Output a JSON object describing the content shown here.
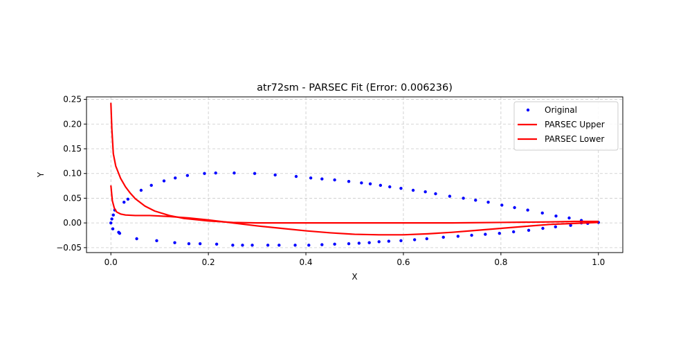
{
  "chart_data": {
    "type": "scatter",
    "title": "atr72sm - PARSEC Fit (Error: 0.006236)",
    "xlabel": "X",
    "ylabel": "Y",
    "xlim": [
      -0.05,
      1.05
    ],
    "ylim": [
      -0.06,
      0.255
    ],
    "xticks": [
      0.0,
      0.2,
      0.4,
      0.6,
      0.8,
      1.0
    ],
    "xtick_labels": [
      "0.0",
      "0.2",
      "0.4",
      "0.6",
      "0.8",
      "1.0"
    ],
    "yticks": [
      -0.05,
      0.0,
      0.05,
      0.1,
      0.15,
      0.2,
      0.25
    ],
    "ytick_labels": [
      "−0.05",
      "0.00",
      "0.05",
      "0.10",
      "0.15",
      "0.20",
      "0.25"
    ],
    "grid": true,
    "legend_position": "top-right",
    "series": [
      {
        "name": "Original",
        "kind": "scatter",
        "color": "#0000ff",
        "points": [
          [
            1.0,
            0.001
          ],
          [
            0.979,
            0.001
          ],
          [
            0.965,
            0.005
          ],
          [
            0.94,
            0.01
          ],
          [
            0.913,
            0.014
          ],
          [
            0.885,
            0.02
          ],
          [
            0.855,
            0.026
          ],
          [
            0.828,
            0.031
          ],
          [
            0.802,
            0.036
          ],
          [
            0.774,
            0.042
          ],
          [
            0.748,
            0.046
          ],
          [
            0.723,
            0.05
          ],
          [
            0.695,
            0.054
          ],
          [
            0.666,
            0.059
          ],
          [
            0.645,
            0.063
          ],
          [
            0.62,
            0.066
          ],
          [
            0.595,
            0.07
          ],
          [
            0.572,
            0.073
          ],
          [
            0.553,
            0.076
          ],
          [
            0.532,
            0.079
          ],
          [
            0.514,
            0.081
          ],
          [
            0.488,
            0.084
          ],
          [
            0.459,
            0.087
          ],
          [
            0.433,
            0.089
          ],
          [
            0.41,
            0.091
          ],
          [
            0.38,
            0.094
          ],
          [
            0.337,
            0.097
          ],
          [
            0.295,
            0.1
          ],
          [
            0.253,
            0.101
          ],
          [
            0.215,
            0.101
          ],
          [
            0.192,
            0.1
          ],
          [
            0.157,
            0.096
          ],
          [
            0.132,
            0.091
          ],
          [
            0.109,
            0.085
          ],
          [
            0.083,
            0.076
          ],
          [
            0.062,
            0.066
          ],
          [
            0.035,
            0.048
          ],
          [
            0.027,
            0.042
          ],
          [
            0.008,
            0.026
          ],
          [
            0.005,
            0.016
          ],
          [
            0.002,
            0.008
          ],
          [
            0.0,
            0.0
          ],
          [
            0.004,
            -0.012
          ],
          [
            0.016,
            -0.019
          ],
          [
            0.018,
            -0.021
          ],
          [
            0.053,
            -0.032
          ],
          [
            0.094,
            -0.036
          ],
          [
            0.131,
            -0.04
          ],
          [
            0.16,
            -0.042
          ],
          [
            0.183,
            -0.042
          ],
          [
            0.217,
            -0.043
          ],
          [
            0.25,
            -0.045
          ],
          [
            0.27,
            -0.045
          ],
          [
            0.29,
            -0.045
          ],
          [
            0.322,
            -0.045
          ],
          [
            0.345,
            -0.045
          ],
          [
            0.378,
            -0.045
          ],
          [
            0.406,
            -0.045
          ],
          [
            0.433,
            -0.044
          ],
          [
            0.459,
            -0.043
          ],
          [
            0.488,
            -0.042
          ],
          [
            0.509,
            -0.041
          ],
          [
            0.53,
            -0.04
          ],
          [
            0.55,
            -0.038
          ],
          [
            0.57,
            -0.037
          ],
          [
            0.595,
            -0.036
          ],
          [
            0.623,
            -0.034
          ],
          [
            0.648,
            -0.032
          ],
          [
            0.682,
            -0.029
          ],
          [
            0.712,
            -0.027
          ],
          [
            0.74,
            -0.025
          ],
          [
            0.768,
            -0.023
          ],
          [
            0.797,
            -0.021
          ],
          [
            0.826,
            -0.018
          ],
          [
            0.857,
            -0.015
          ],
          [
            0.886,
            -0.011
          ],
          [
            0.912,
            -0.008
          ],
          [
            0.943,
            -0.005
          ],
          [
            0.965,
            0.0
          ],
          [
            0.978,
            -0.001
          ]
        ]
      },
      {
        "name": "PARSEC Upper",
        "kind": "line",
        "color": "#ff0000",
        "points": [
          [
            0.0,
            0.243
          ],
          [
            0.002,
            0.19
          ],
          [
            0.005,
            0.14
          ],
          [
            0.01,
            0.115
          ],
          [
            0.02,
            0.09
          ],
          [
            0.03,
            0.073
          ],
          [
            0.04,
            0.06
          ],
          [
            0.05,
            0.049
          ],
          [
            0.07,
            0.034
          ],
          [
            0.09,
            0.024
          ],
          [
            0.12,
            0.015
          ],
          [
            0.15,
            0.009
          ],
          [
            0.2,
            0.004
          ],
          [
            0.25,
            0.001
          ],
          [
            0.3,
            0.0
          ],
          [
            0.4,
            0.0
          ],
          [
            0.5,
            0.0
          ],
          [
            0.6,
            0.0
          ],
          [
            0.7,
            0.0
          ],
          [
            0.8,
            0.001
          ],
          [
            0.9,
            0.002
          ],
          [
            0.95,
            0.003
          ],
          [
            1.0,
            0.003
          ]
        ]
      },
      {
        "name": "PARSEC Lower",
        "kind": "line",
        "color": "#ff0000",
        "points": [
          [
            0.0,
            0.076
          ],
          [
            0.003,
            0.045
          ],
          [
            0.007,
            0.03
          ],
          [
            0.012,
            0.022
          ],
          [
            0.02,
            0.018
          ],
          [
            0.03,
            0.016
          ],
          [
            0.05,
            0.015
          ],
          [
            0.08,
            0.015
          ],
          [
            0.12,
            0.013
          ],
          [
            0.16,
            0.01
          ],
          [
            0.2,
            0.006
          ],
          [
            0.25,
            0.0
          ],
          [
            0.3,
            -0.006
          ],
          [
            0.35,
            -0.011
          ],
          [
            0.4,
            -0.016
          ],
          [
            0.45,
            -0.02
          ],
          [
            0.5,
            -0.023
          ],
          [
            0.55,
            -0.024
          ],
          [
            0.6,
            -0.024
          ],
          [
            0.65,
            -0.022
          ],
          [
            0.7,
            -0.019
          ],
          [
            0.75,
            -0.015
          ],
          [
            0.8,
            -0.011
          ],
          [
            0.85,
            -0.007
          ],
          [
            0.9,
            -0.003
          ],
          [
            0.95,
            -0.001
          ],
          [
            1.0,
            0.001
          ]
        ]
      }
    ]
  }
}
